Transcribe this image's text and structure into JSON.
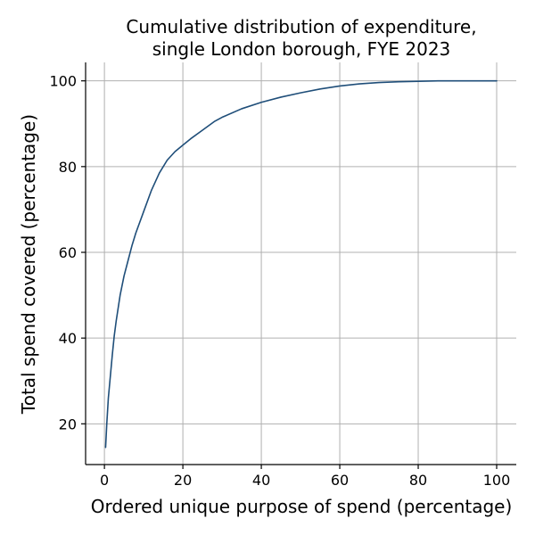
{
  "chart_data": {
    "type": "line",
    "title_lines": [
      "Cumulative distribution of expenditure,",
      "single London borough, FYE 2023"
    ],
    "xlabel": "Ordered unique purpose of spend (percentage)",
    "ylabel": "Total spend covered (percentage)",
    "xlim": [
      -4.8,
      105
    ],
    "ylim": [
      10.5,
      104.3
    ],
    "xticks": [
      0,
      20,
      40,
      60,
      80,
      100
    ],
    "yticks": [
      20,
      40,
      60,
      80,
      100
    ],
    "xtick_labels": [
      "0",
      "20",
      "40",
      "60",
      "80",
      "100"
    ],
    "ytick_labels": [
      "20",
      "40",
      "60",
      "80",
      "100"
    ],
    "grid": true,
    "line_color": "#1f4e79",
    "series": [
      {
        "x": [
          0.3,
          0.6,
          1,
          1.5,
          2,
          2.5,
          3,
          4,
          5,
          6,
          7,
          8,
          9,
          10,
          12,
          14,
          16,
          18,
          20,
          22,
          25,
          28,
          30,
          35,
          40,
          45,
          50,
          55,
          60,
          65,
          70,
          75,
          80,
          85,
          90,
          95,
          100
        ],
        "y": [
          14.5,
          20,
          26,
          31,
          36,
          40.5,
          44,
          50,
          54.5,
          58,
          61.5,
          64.5,
          67,
          69.5,
          74.5,
          78.5,
          81.5,
          83.5,
          85,
          86.5,
          88.5,
          90.5,
          91.5,
          93.5,
          95,
          96.2,
          97.2,
          98.1,
          98.8,
          99.3,
          99.6,
          99.8,
          99.9,
          100,
          100,
          100,
          100
        ]
      }
    ]
  }
}
